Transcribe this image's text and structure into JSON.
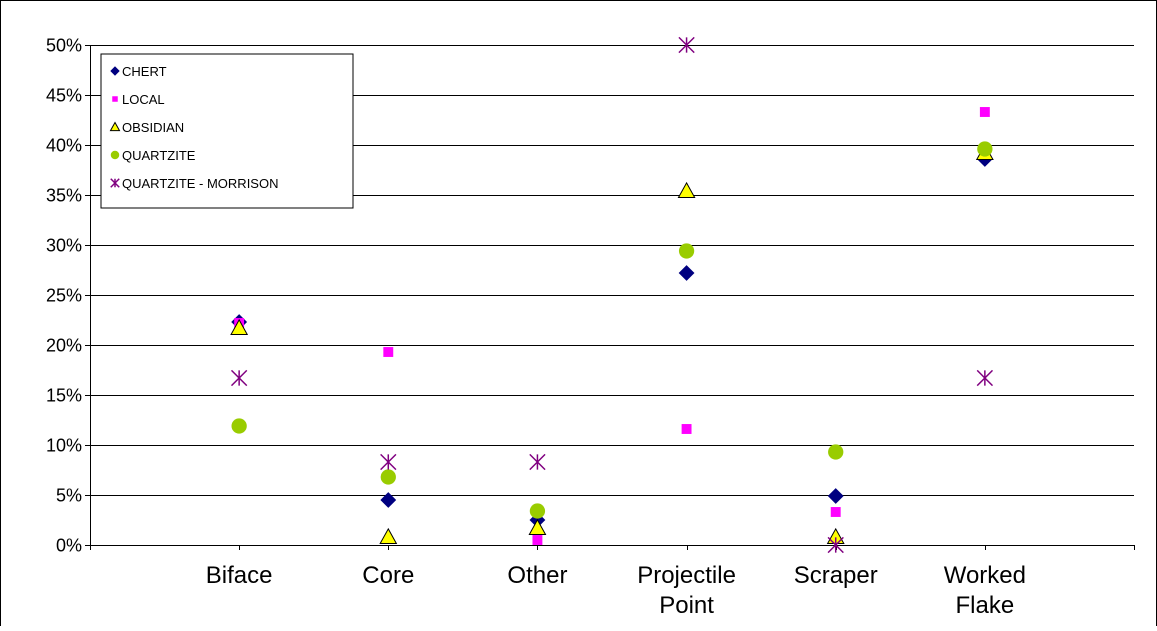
{
  "chart_data": {
    "type": "scatter",
    "title": "",
    "xlabel": "",
    "ylabel": "",
    "categories": [
      "Biface",
      "Core",
      "Other",
      "Projectile Point",
      "Scraper",
      "Worked Flake"
    ],
    "category_label_lines": [
      [
        "Biface"
      ],
      [
        "Core"
      ],
      [
        "Other"
      ],
      [
        "Projectile",
        "Point"
      ],
      [
        "Scraper"
      ],
      [
        "Worked",
        "Flake"
      ]
    ],
    "ylim": [
      0,
      50
    ],
    "yticks": [
      0,
      5,
      10,
      15,
      20,
      25,
      30,
      35,
      40,
      45,
      50
    ],
    "ytick_labels": [
      "0%",
      "5%",
      "10%",
      "15%",
      "20%",
      "25%",
      "30%",
      "35%",
      "40%",
      "45%",
      "50%"
    ],
    "y_unit": "%",
    "grid": true,
    "legend_position": "top-left",
    "series": [
      {
        "name": "CHERT",
        "marker": "diamond",
        "color": "#000080",
        "values": [
          22.3,
          4.5,
          2.5,
          27.2,
          4.9,
          38.6
        ]
      },
      {
        "name": "LOCAL",
        "marker": "square",
        "color": "#ff00ff",
        "values": [
          22.2,
          19.3,
          0.5,
          11.6,
          3.3,
          43.3
        ]
      },
      {
        "name": "OBSIDIAN",
        "marker": "triangle",
        "color": "#ffff00",
        "values": [
          21.7,
          0.8,
          1.7,
          35.4,
          0.8,
          39.2
        ]
      },
      {
        "name": "QUARTZITE",
        "marker": "circle",
        "color": "#99cc00",
        "values": [
          11.9,
          6.8,
          3.4,
          29.4,
          9.3,
          39.6
        ]
      },
      {
        "name": "QUARTZITE - MORRISON",
        "marker": "asterisk",
        "color": "#800080",
        "values": [
          16.7,
          8.3,
          8.3,
          50.0,
          0.0,
          16.7
        ]
      }
    ]
  }
}
